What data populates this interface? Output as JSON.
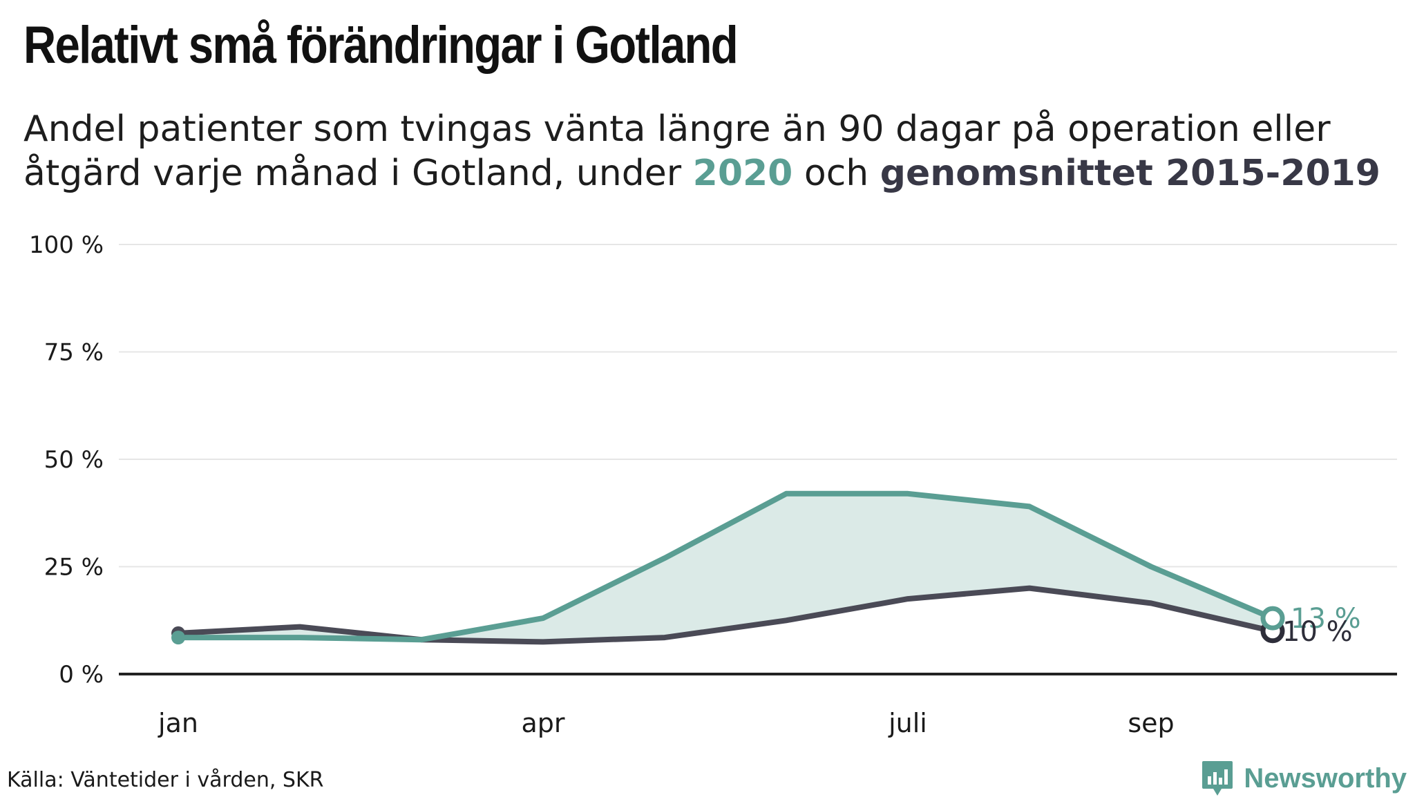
{
  "title": "Relativt små förändringar i Gotland",
  "subtitle": {
    "part1": "Andel patienter som tvingas vänta längre än 90 dagar på operation eller åtgärd varje månad i Gotland, under ",
    "highlight_2020": "2020",
    "part2": " och ",
    "highlight_avg": "genomsnittet 2015-2019"
  },
  "source": "Källa: Väntetider i vården, SKR",
  "brand": "Newsworthy",
  "colors": {
    "series_2020": "#5a9e93",
    "series_avg": "#4a4a56",
    "fill": "#dbeae7",
    "grid": "#e6e6e6",
    "axis": "#222222"
  },
  "chart_data": {
    "type": "line",
    "x": [
      1,
      2,
      3,
      4,
      5,
      6,
      7,
      8,
      9,
      10
    ],
    "x_tick_values": [
      1,
      4,
      7,
      9
    ],
    "x_tick_labels": [
      "jan",
      "apr",
      "juli",
      "sep"
    ],
    "xlim": [
      0.5,
      11
    ],
    "ylim": [
      0,
      100
    ],
    "y_ticks": [
      0,
      25,
      50,
      75,
      100
    ],
    "y_tick_labels": [
      "0 %",
      "25 %",
      "50 %",
      "75 %",
      "100 %"
    ],
    "grid": true,
    "series": [
      {
        "name": "2020",
        "values": [
          8.5,
          8.5,
          8,
          13,
          27,
          42,
          42,
          39,
          25,
          13
        ],
        "end_label": "13 %"
      },
      {
        "name": "genomsnittet 2015-2019",
        "values": [
          9.5,
          11,
          8,
          7.5,
          8.5,
          12.5,
          17.5,
          20,
          16.5,
          10
        ],
        "end_label": "10 %"
      }
    ]
  }
}
